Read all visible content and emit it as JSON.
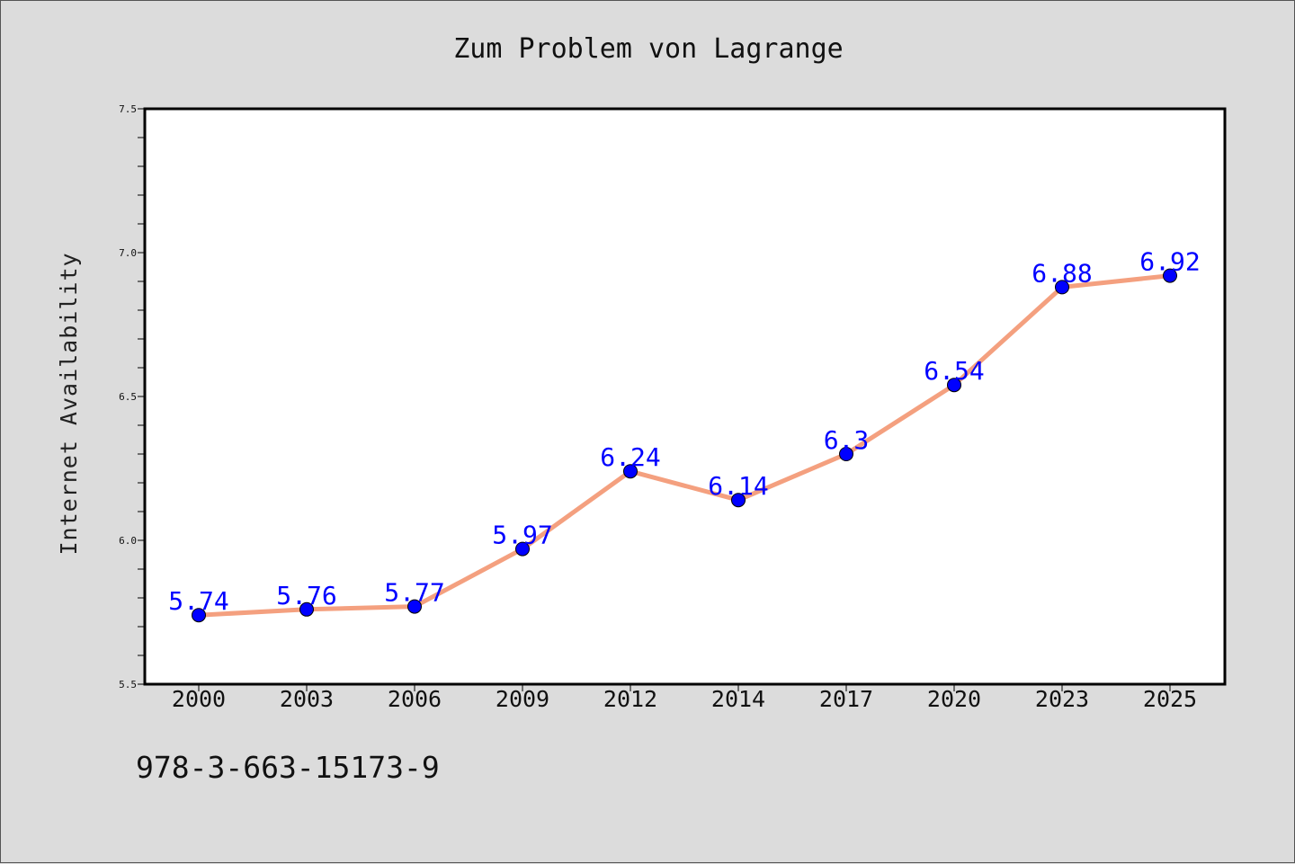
{
  "footer_text": "978-3-663-15173-9",
  "colors": {
    "background": "#dcdcdc",
    "plot_area": "#ffffff",
    "line": "#f4a07f",
    "marker_fill": "#0000ff",
    "data_label": "#0000ff"
  },
  "chart_data": {
    "type": "line",
    "title": "Zum Problem von Lagrange",
    "xlabel": "",
    "ylabel": "Internet Availability",
    "categories": [
      "2000",
      "2003",
      "2006",
      "2009",
      "2012",
      "2014",
      "2017",
      "2020",
      "2023",
      "2025"
    ],
    "series": [
      {
        "values": [
          5.74,
          5.76,
          5.77,
          5.97,
          6.24,
          6.14,
          6.3,
          6.54,
          6.88,
          6.92
        ]
      }
    ],
    "data_labels": [
      "5.74",
      "5.76",
      "5.77",
      "5.97",
      "6.24",
      "6.14",
      "6.3",
      "6.54",
      "6.88",
      "6.92"
    ],
    "ylim": [
      5.5,
      7.5
    ],
    "yticks": [
      "5.5",
      "6.0",
      "6.5",
      "7.0",
      "7.5"
    ],
    "y_minor_step": 0.1,
    "grid": false,
    "legend": "none"
  }
}
